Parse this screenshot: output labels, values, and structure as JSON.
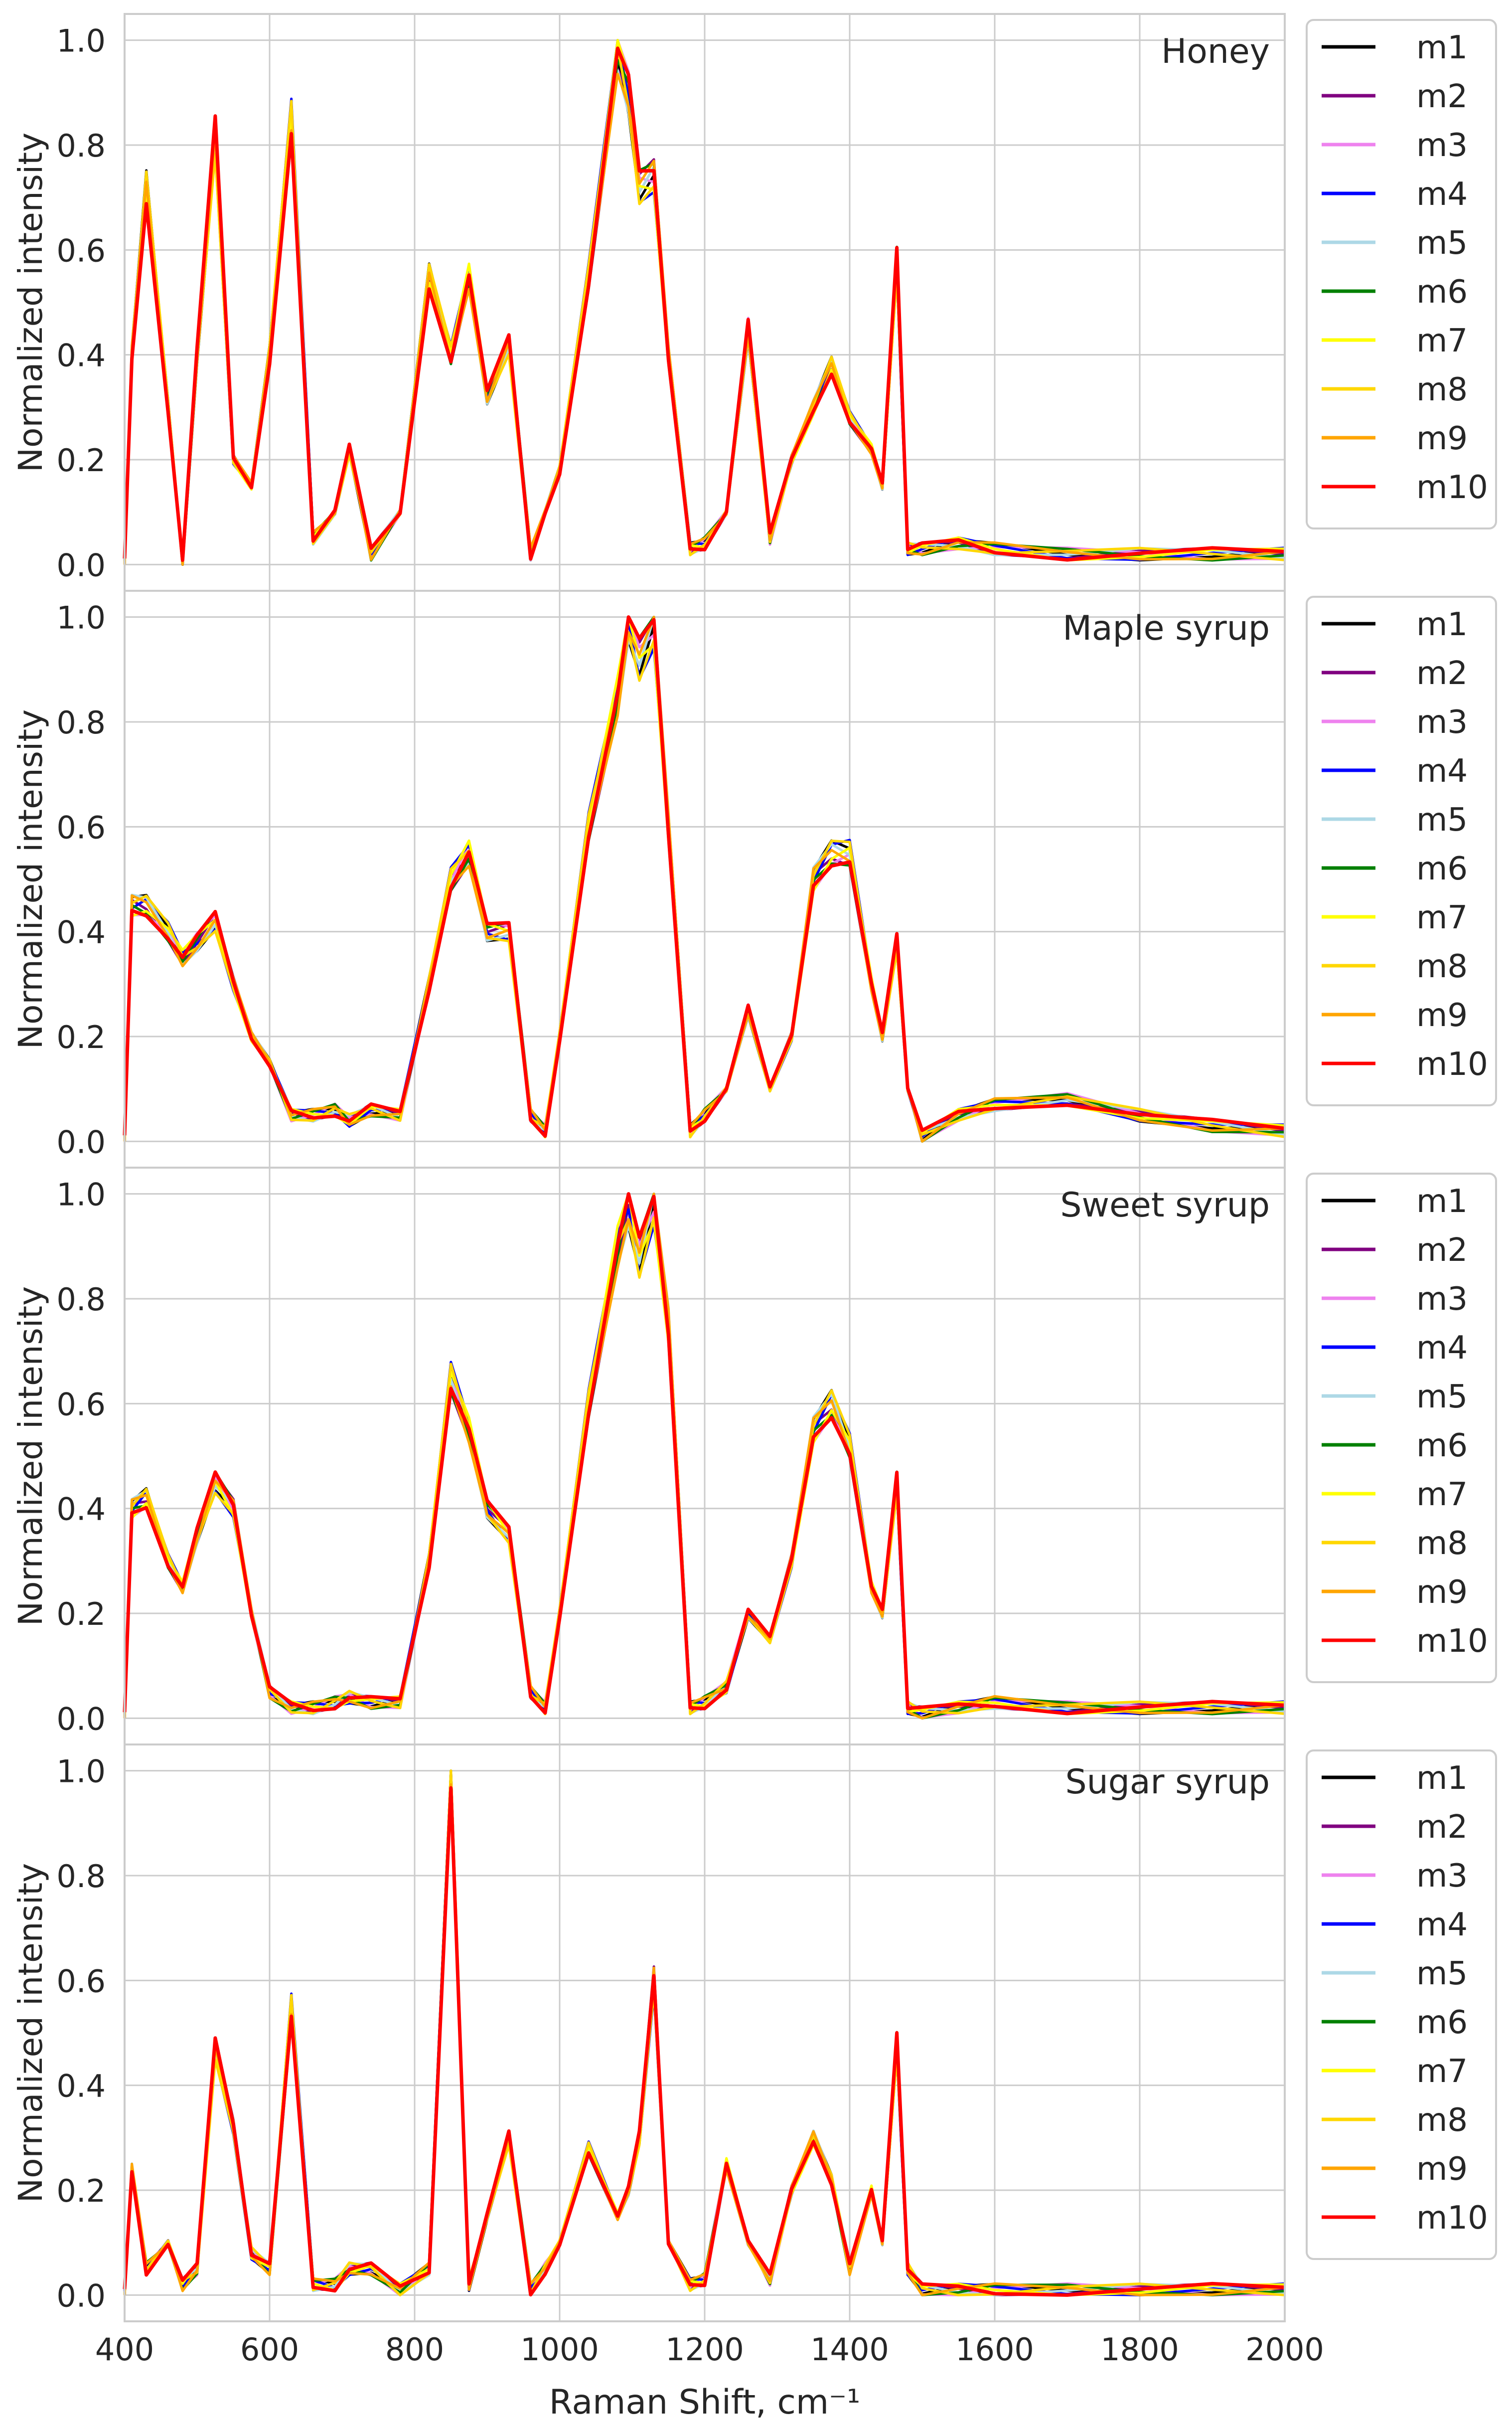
{
  "chart_data": {
    "type": "line",
    "xlabel": "Raman Shift, cm⁻¹",
    "xlim": [
      400,
      2000
    ],
    "xticks": [
      400,
      600,
      800,
      1000,
      1200,
      1400,
      1600,
      1800,
      2000
    ],
    "ylabel": "Normalized intensity",
    "ylim": [
      -0.05,
      1.05
    ],
    "yticks": [
      0.0,
      0.2,
      0.4,
      0.6,
      0.8,
      1.0
    ],
    "grid": true,
    "legend_placement": "outside-right",
    "series_names": [
      "m1",
      "m2",
      "m3",
      "m4",
      "m5",
      "m6",
      "m7",
      "m8",
      "m9",
      "m10"
    ],
    "series_colors": [
      "#000000",
      "#800080",
      "#ee82ee",
      "#0000ff",
      "#add8e6",
      "#008000",
      "#ffff00",
      "#ffd700",
      "#ffa500",
      "#ff0000"
    ],
    "x": [
      400,
      410,
      430,
      460,
      480,
      500,
      525,
      550,
      575,
      600,
      630,
      660,
      690,
      710,
      740,
      780,
      820,
      850,
      875,
      900,
      930,
      960,
      980,
      1000,
      1040,
      1080,
      1095,
      1110,
      1130,
      1150,
      1180,
      1200,
      1230,
      1260,
      1290,
      1320,
      1350,
      1375,
      1400,
      1430,
      1445,
      1465,
      1480,
      1500,
      1550,
      1600,
      1700,
      1800,
      1900,
      2000
    ],
    "panels": [
      {
        "title": "Honey",
        "values": [
          0.0,
          0.4,
          0.72,
          0.3,
          0.0,
          0.4,
          0.82,
          0.2,
          0.15,
          0.4,
          0.85,
          0.05,
          0.1,
          0.22,
          0.02,
          0.1,
          0.55,
          0.4,
          0.55,
          0.32,
          0.42,
          0.02,
          0.1,
          0.18,
          0.55,
          0.98,
          0.9,
          0.72,
          0.74,
          0.4,
          0.03,
          0.04,
          0.1,
          0.45,
          0.05,
          0.2,
          0.3,
          0.38,
          0.28,
          0.22,
          0.15,
          0.58,
          0.03,
          0.03,
          0.04,
          0.03,
          0.02,
          0.02,
          0.02,
          0.02
        ]
      },
      {
        "title": "Maple syrup",
        "values": [
          0.0,
          0.45,
          0.45,
          0.4,
          0.35,
          0.38,
          0.42,
          0.3,
          0.2,
          0.15,
          0.05,
          0.05,
          0.06,
          0.04,
          0.06,
          0.05,
          0.3,
          0.5,
          0.55,
          0.4,
          0.4,
          0.05,
          0.02,
          0.2,
          0.6,
          0.85,
          1.0,
          0.92,
          0.98,
          0.6,
          0.02,
          0.05,
          0.1,
          0.25,
          0.1,
          0.2,
          0.5,
          0.55,
          0.55,
          0.3,
          0.2,
          0.38,
          0.1,
          0.01,
          0.05,
          0.07,
          0.08,
          0.05,
          0.03,
          0.02
        ]
      },
      {
        "title": "Sweet syrup",
        "values": [
          0.0,
          0.4,
          0.42,
          0.3,
          0.25,
          0.35,
          0.45,
          0.4,
          0.2,
          0.05,
          0.02,
          0.02,
          0.03,
          0.04,
          0.03,
          0.03,
          0.3,
          0.65,
          0.55,
          0.4,
          0.35,
          0.05,
          0.02,
          0.2,
          0.6,
          0.9,
          0.98,
          0.88,
          0.98,
          0.75,
          0.02,
          0.03,
          0.06,
          0.2,
          0.15,
          0.3,
          0.55,
          0.6,
          0.52,
          0.25,
          0.2,
          0.45,
          0.02,
          0.01,
          0.02,
          0.03,
          0.02,
          0.02,
          0.02,
          0.02
        ]
      },
      {
        "title": "Sugar syrup",
        "values": [
          0.0,
          0.24,
          0.05,
          0.1,
          0.02,
          0.05,
          0.47,
          0.32,
          0.08,
          0.05,
          0.55,
          0.02,
          0.02,
          0.05,
          0.05,
          0.01,
          0.05,
          1.0,
          0.02,
          0.15,
          0.3,
          0.01,
          0.05,
          0.1,
          0.28,
          0.15,
          0.2,
          0.3,
          0.6,
          0.1,
          0.02,
          0.03,
          0.25,
          0.1,
          0.03,
          0.2,
          0.3,
          0.22,
          0.05,
          0.2,
          0.1,
          0.48,
          0.05,
          0.01,
          0.01,
          0.01,
          0.01,
          0.01,
          0.01,
          0.01
        ]
      }
    ]
  }
}
